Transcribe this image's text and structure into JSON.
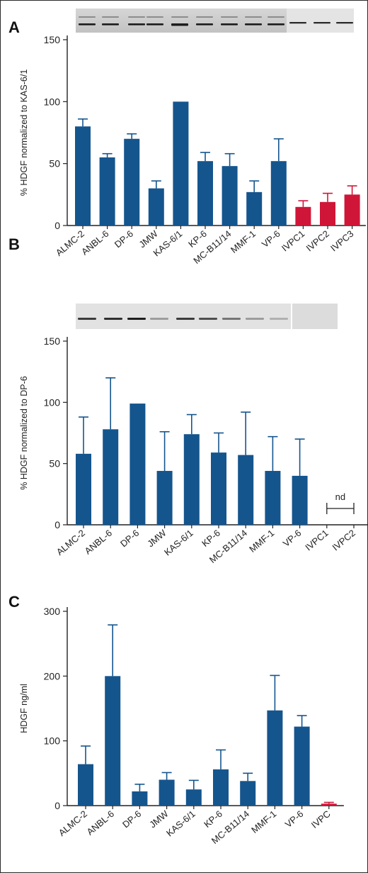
{
  "colors": {
    "normal": "#15558d",
    "ivpc": "#cf1638",
    "axis": "#222222"
  },
  "chart_data": [
    {
      "panel": "A",
      "type": "bar",
      "ylabel": "% HDGF normalized to KAS-6/1",
      "ylim": [
        0,
        150
      ],
      "yticks": [
        0,
        50,
        100,
        150
      ],
      "categories": [
        "ALMC-2",
        "ANBL-6",
        "DP-6",
        "JMW",
        "KAS-6/1",
        "KP-6",
        "MC-B11/14",
        "MMF-1",
        "VP-6",
        "IVPC1",
        "IVPC2",
        "IVPC3"
      ],
      "values": [
        80,
        55,
        70,
        30,
        100,
        52,
        48,
        27,
        52,
        15,
        19,
        25
      ],
      "errors": [
        6,
        3,
        4,
        6,
        0,
        7,
        10,
        9,
        18,
        5,
        7,
        7
      ],
      "highlight": [
        false,
        false,
        false,
        false,
        false,
        false,
        false,
        false,
        false,
        true,
        true,
        true
      ]
    },
    {
      "panel": "B",
      "type": "bar",
      "ylabel": "% HDGF normalized to DP-6",
      "ylim": [
        0,
        150
      ],
      "yticks": [
        0,
        50,
        100,
        150
      ],
      "categories": [
        "ALMC-2",
        "ANBL-6",
        "DP-6",
        "JMW",
        "KAS-6/1",
        "KP-6",
        "MC-B11/14",
        "MMF-1",
        "VP-6",
        "IVPC1",
        "IVPC2"
      ],
      "values": [
        58,
        78,
        99,
        44,
        74,
        59,
        57,
        44,
        40,
        null,
        null
      ],
      "errors": [
        30,
        42,
        0,
        32,
        16,
        16,
        35,
        28,
        30,
        null,
        null
      ],
      "highlight": [
        false,
        false,
        false,
        false,
        false,
        false,
        false,
        false,
        false,
        true,
        true
      ],
      "annotation": "nd"
    },
    {
      "panel": "C",
      "type": "bar",
      "ylabel": "HDGF ng/ml",
      "ylim": [
        0,
        300
      ],
      "yticks": [
        0,
        100,
        200,
        300
      ],
      "categories": [
        "ALMC-2",
        "ANBL-6",
        "DP-6",
        "JMW",
        "KAS-6/1",
        "KP-6",
        "MC-B11/14",
        "MMF-1",
        "VP-6",
        "IVPC"
      ],
      "values": [
        64,
        200,
        22,
        40,
        25,
        56,
        38,
        147,
        122,
        3
      ],
      "errors": [
        28,
        79,
        11,
        11,
        14,
        30,
        12,
        54,
        17,
        2
      ],
      "highlight": [
        false,
        false,
        false,
        false,
        false,
        false,
        false,
        false,
        false,
        true
      ]
    }
  ]
}
